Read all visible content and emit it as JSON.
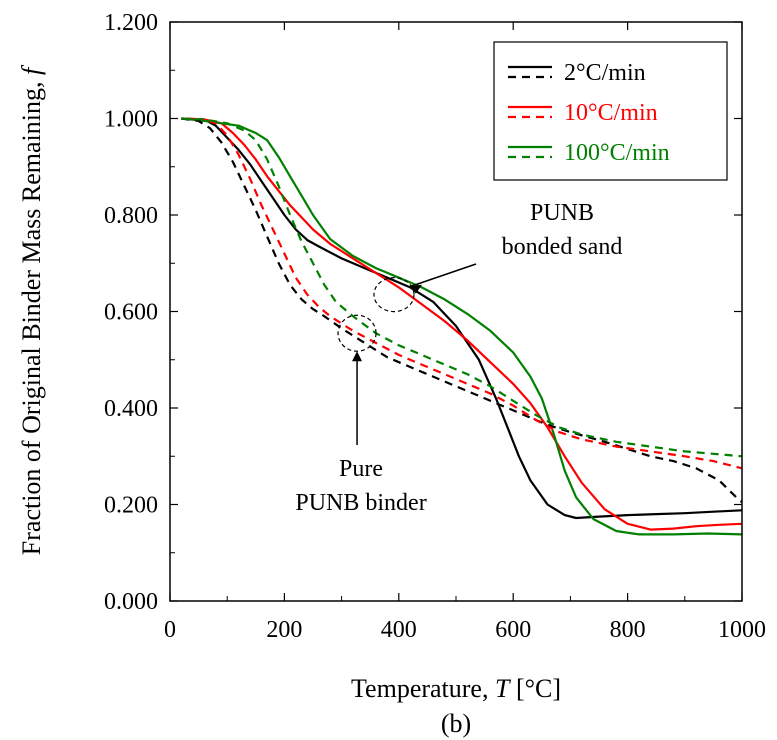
{
  "chart_data": {
    "type": "line",
    "xlabel": "Temperature, ",
    "xlabel_symbol": "T",
    "xlabel_unit": " [°C]",
    "ylabel": "Fraction of Original Binder Mass Remaining, ",
    "ylabel_symbol": "f",
    "caption": "(b)",
    "xlim": [
      0,
      1000
    ],
    "ylim": [
      0,
      1.2
    ],
    "xticks": [
      "0",
      "200",
      "400",
      "600",
      "800",
      "1000"
    ],
    "yticks": [
      "0.000",
      "0.200",
      "0.400",
      "0.600",
      "0.800",
      "1.000",
      "1.200"
    ],
    "grid": false,
    "legend_position": "top-right",
    "legend": [
      {
        "label": "2°C/min",
        "color": "#000000"
      },
      {
        "label": "10°C/min",
        "color": "#ff0000"
      },
      {
        "label": "100°C/min",
        "color": "#008000"
      }
    ],
    "annotations": [
      {
        "lines": [
          "PUNB",
          "bonded sand"
        ],
        "target": [
          430,
          0.635
        ]
      },
      {
        "lines": [
          "Pure",
          "PUNB binder"
        ],
        "target": [
          320,
          0.555
        ]
      }
    ],
    "series": [
      {
        "name": "2°C/min",
        "material": "bonded sand",
        "style": "solid",
        "color": "#000000",
        "points": [
          [
            20,
            1.0
          ],
          [
            60,
            0.998
          ],
          [
            80,
            0.985
          ],
          [
            100,
            0.96
          ],
          [
            120,
            0.935
          ],
          [
            140,
            0.905
          ],
          [
            160,
            0.87
          ],
          [
            180,
            0.835
          ],
          [
            200,
            0.8
          ],
          [
            220,
            0.77
          ],
          [
            240,
            0.748
          ],
          [
            260,
            0.735
          ],
          [
            300,
            0.71
          ],
          [
            340,
            0.69
          ],
          [
            380,
            0.67
          ],
          [
            420,
            0.65
          ],
          [
            460,
            0.62
          ],
          [
            500,
            0.57
          ],
          [
            540,
            0.5
          ],
          [
            570,
            0.42
          ],
          [
            590,
            0.36
          ],
          [
            610,
            0.3
          ],
          [
            630,
            0.25
          ],
          [
            660,
            0.2
          ],
          [
            690,
            0.178
          ],
          [
            710,
            0.172
          ],
          [
            750,
            0.175
          ],
          [
            800,
            0.178
          ],
          [
            850,
            0.18
          ],
          [
            900,
            0.182
          ],
          [
            950,
            0.185
          ],
          [
            1000,
            0.188
          ]
        ]
      },
      {
        "name": "10°C/min",
        "material": "bonded sand",
        "style": "solid",
        "color": "#ff0000",
        "points": [
          [
            20,
            1.0
          ],
          [
            60,
            0.998
          ],
          [
            90,
            0.99
          ],
          [
            110,
            0.97
          ],
          [
            130,
            0.945
          ],
          [
            150,
            0.915
          ],
          [
            170,
            0.88
          ],
          [
            190,
            0.85
          ],
          [
            210,
            0.82
          ],
          [
            230,
            0.795
          ],
          [
            250,
            0.77
          ],
          [
            280,
            0.74
          ],
          [
            320,
            0.71
          ],
          [
            360,
            0.68
          ],
          [
            400,
            0.65
          ],
          [
            440,
            0.615
          ],
          [
            480,
            0.58
          ],
          [
            520,
            0.54
          ],
          [
            560,
            0.495
          ],
          [
            600,
            0.45
          ],
          [
            630,
            0.41
          ],
          [
            660,
            0.36
          ],
          [
            690,
            0.3
          ],
          [
            720,
            0.245
          ],
          [
            760,
            0.19
          ],
          [
            800,
            0.16
          ],
          [
            840,
            0.148
          ],
          [
            880,
            0.15
          ],
          [
            920,
            0.155
          ],
          [
            960,
            0.158
          ],
          [
            1000,
            0.16
          ]
        ]
      },
      {
        "name": "100°C/min",
        "material": "bonded sand",
        "style": "solid",
        "color": "#008000",
        "points": [
          [
            20,
            1.0
          ],
          [
            60,
            0.995
          ],
          [
            90,
            0.99
          ],
          [
            120,
            0.985
          ],
          [
            150,
            0.97
          ],
          [
            170,
            0.955
          ],
          [
            190,
            0.92
          ],
          [
            210,
            0.88
          ],
          [
            230,
            0.84
          ],
          [
            250,
            0.8
          ],
          [
            280,
            0.75
          ],
          [
            320,
            0.715
          ],
          [
            360,
            0.69
          ],
          [
            400,
            0.67
          ],
          [
            440,
            0.65
          ],
          [
            480,
            0.625
          ],
          [
            520,
            0.595
          ],
          [
            560,
            0.56
          ],
          [
            600,
            0.515
          ],
          [
            630,
            0.465
          ],
          [
            650,
            0.42
          ],
          [
            670,
            0.35
          ],
          [
            690,
            0.27
          ],
          [
            710,
            0.215
          ],
          [
            740,
            0.17
          ],
          [
            780,
            0.145
          ],
          [
            820,
            0.138
          ],
          [
            880,
            0.138
          ],
          [
            940,
            0.14
          ],
          [
            1000,
            0.138
          ]
        ]
      },
      {
        "name": "2°C/min",
        "material": "pure binder",
        "style": "dashed",
        "color": "#000000",
        "points": [
          [
            20,
            1.0
          ],
          [
            50,
            0.995
          ],
          [
            70,
            0.98
          ],
          [
            90,
            0.95
          ],
          [
            110,
            0.91
          ],
          [
            130,
            0.86
          ],
          [
            150,
            0.81
          ],
          [
            170,
            0.755
          ],
          [
            190,
            0.7
          ],
          [
            210,
            0.655
          ],
          [
            230,
            0.625
          ],
          [
            250,
            0.605
          ],
          [
            270,
            0.59
          ],
          [
            300,
            0.565
          ],
          [
            340,
            0.535
          ],
          [
            380,
            0.505
          ],
          [
            420,
            0.485
          ],
          [
            460,
            0.465
          ],
          [
            500,
            0.445
          ],
          [
            540,
            0.425
          ],
          [
            580,
            0.405
          ],
          [
            620,
            0.385
          ],
          [
            660,
            0.365
          ],
          [
            700,
            0.35
          ],
          [
            760,
            0.33
          ],
          [
            800,
            0.315
          ],
          [
            840,
            0.3
          ],
          [
            880,
            0.29
          ],
          [
            920,
            0.275
          ],
          [
            960,
            0.25
          ],
          [
            990,
            0.215
          ],
          [
            1000,
            0.205
          ]
        ]
      },
      {
        "name": "10°C/min",
        "material": "pure binder",
        "style": "dashed",
        "color": "#ff0000",
        "points": [
          [
            20,
            1.0
          ],
          [
            60,
            0.998
          ],
          [
            80,
            0.99
          ],
          [
            100,
            0.965
          ],
          [
            120,
            0.925
          ],
          [
            140,
            0.875
          ],
          [
            160,
            0.82
          ],
          [
            180,
            0.77
          ],
          [
            200,
            0.72
          ],
          [
            220,
            0.67
          ],
          [
            240,
            0.635
          ],
          [
            260,
            0.61
          ],
          [
            280,
            0.59
          ],
          [
            320,
            0.56
          ],
          [
            360,
            0.535
          ],
          [
            400,
            0.51
          ],
          [
            440,
            0.49
          ],
          [
            480,
            0.47
          ],
          [
            520,
            0.45
          ],
          [
            560,
            0.43
          ],
          [
            600,
            0.405
          ],
          [
            640,
            0.375
          ],
          [
            680,
            0.35
          ],
          [
            720,
            0.335
          ],
          [
            780,
            0.32
          ],
          [
            840,
            0.31
          ],
          [
            900,
            0.3
          ],
          [
            950,
            0.29
          ],
          [
            1000,
            0.275
          ]
        ]
      },
      {
        "name": "100°C/min",
        "material": "pure binder",
        "style": "dashed",
        "color": "#008000",
        "points": [
          [
            20,
            1.0
          ],
          [
            60,
            0.998
          ],
          [
            100,
            0.99
          ],
          [
            130,
            0.975
          ],
          [
            150,
            0.955
          ],
          [
            170,
            0.915
          ],
          [
            190,
            0.86
          ],
          [
            210,
            0.8
          ],
          [
            230,
            0.745
          ],
          [
            250,
            0.7
          ],
          [
            270,
            0.655
          ],
          [
            290,
            0.62
          ],
          [
            320,
            0.59
          ],
          [
            360,
            0.555
          ],
          [
            400,
            0.53
          ],
          [
            440,
            0.51
          ],
          [
            480,
            0.49
          ],
          [
            520,
            0.47
          ],
          [
            560,
            0.445
          ],
          [
            600,
            0.415
          ],
          [
            640,
            0.385
          ],
          [
            680,
            0.36
          ],
          [
            720,
            0.345
          ],
          [
            780,
            0.33
          ],
          [
            840,
            0.32
          ],
          [
            900,
            0.31
          ],
          [
            950,
            0.305
          ],
          [
            1000,
            0.3
          ]
        ]
      }
    ]
  }
}
